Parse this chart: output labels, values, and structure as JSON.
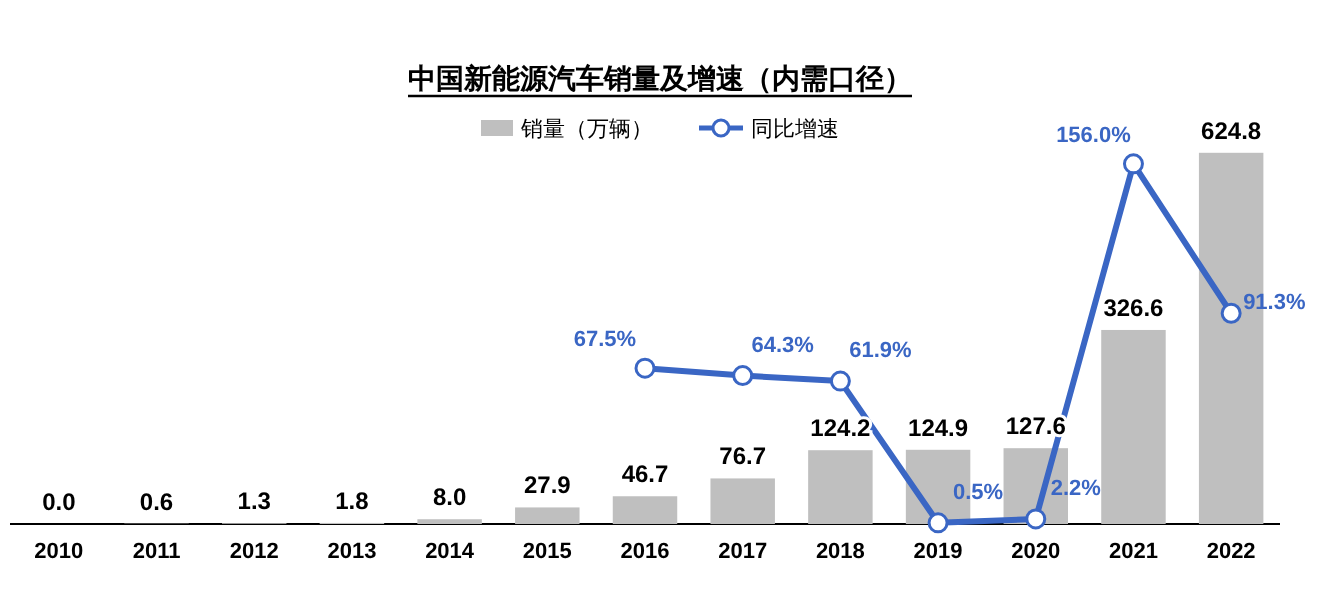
{
  "chart_data": {
    "type": "bar",
    "title": "中国新能源汽车销量及增速（内需口径）",
    "categories": [
      "2010",
      "2011",
      "2012",
      "2013",
      "2014",
      "2015",
      "2016",
      "2017",
      "2018",
      "2019",
      "2020",
      "2021",
      "2022"
    ],
    "series": [
      {
        "name": "销量（万辆）",
        "color": "#bfbfbf",
        "values": [
          0.0,
          0.6,
          1.3,
          1.8,
          8.0,
          27.9,
          46.7,
          76.7,
          124.2,
          124.9,
          127.6,
          326.6,
          624.8
        ],
        "value_labels": [
          "0.0",
          "0.6",
          "1.3",
          "1.8",
          "8.0",
          "27.9",
          "46.7",
          "76.7",
          "124.2",
          "124.9",
          "127.6",
          "326.6",
          "624.8"
        ]
      },
      {
        "name": "同比增速",
        "type": "line",
        "axis": "y2",
        "color": "#3a66c4",
        "marker": "circle",
        "values": [
          null,
          null,
          null,
          null,
          null,
          null,
          67.5,
          64.3,
          61.9,
          0.5,
          2.2,
          156.0,
          91.3
        ],
        "value_labels": [
          null,
          null,
          null,
          null,
          null,
          null,
          "67.5%",
          "64.3%",
          "61.9%",
          "0.5%",
          "2.2%",
          "156.0%",
          "91.3%"
        ]
      }
    ],
    "ylim": [
      0,
      680
    ],
    "y2lim": [
      0,
      175
    ],
    "tick_labels": "x",
    "legend": "top"
  }
}
